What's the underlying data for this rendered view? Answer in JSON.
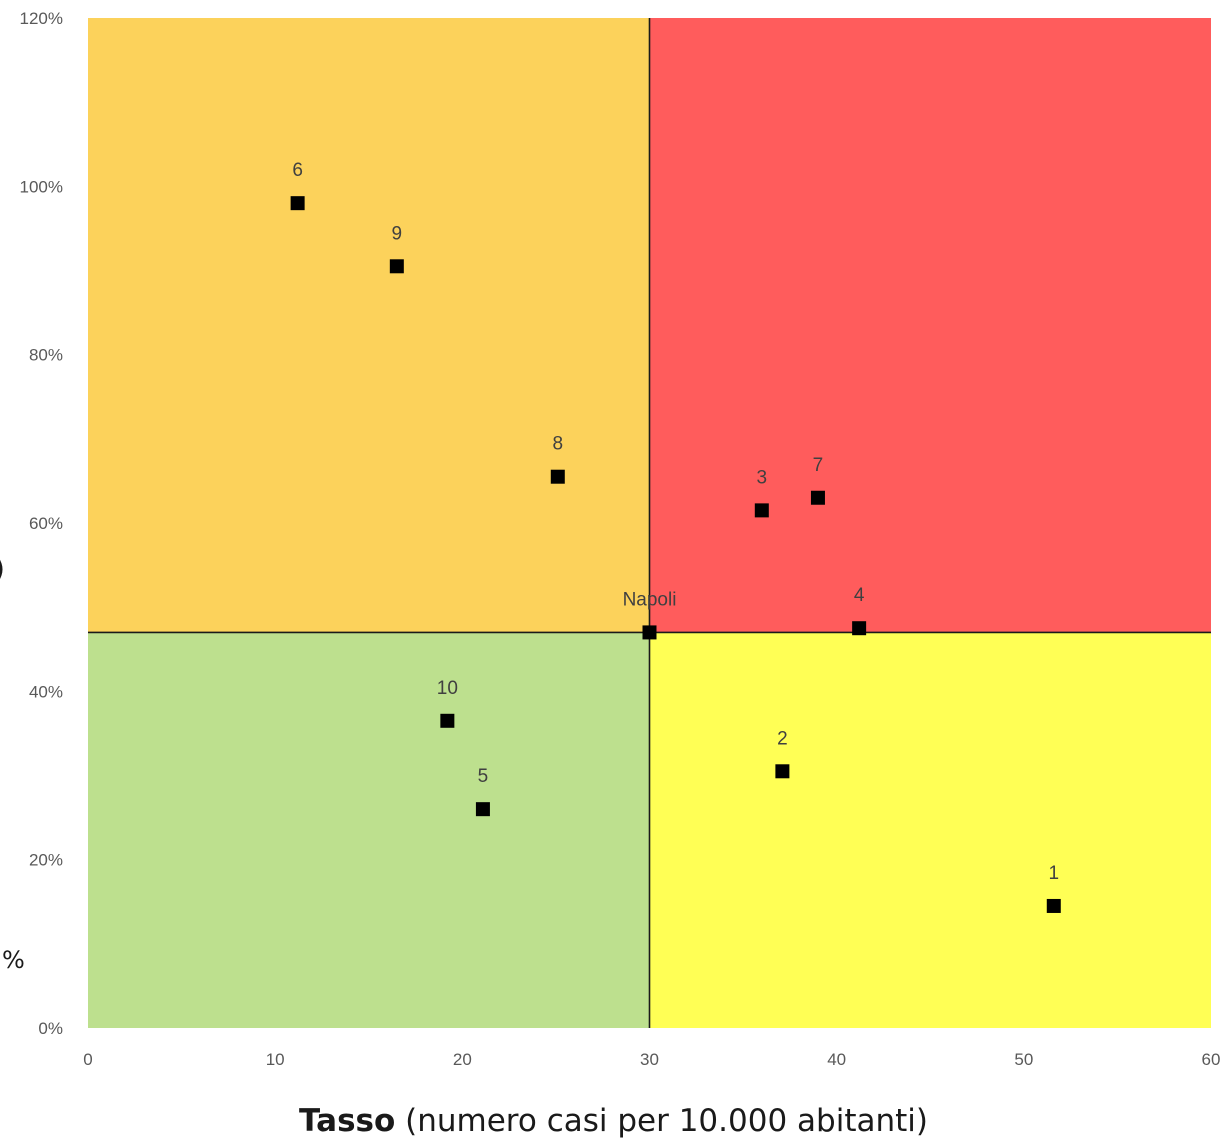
{
  "chart_data": {
    "type": "scatter",
    "x_range": [
      0,
      60
    ],
    "y_range": [
      0,
      1.2
    ],
    "x_ticks": [
      "0",
      "10",
      "20",
      "30",
      "40",
      "50",
      "60"
    ],
    "y_ticks": [
      "0%",
      "20%",
      "40%",
      "60%",
      "80%",
      "100%",
      "120%"
    ],
    "xlabel_bold": "Tasso",
    "xlabel_rest": " (numero casi per 10.000 abitanti)",
    "ylabel_fragments": [
      "%",
      ")"
    ],
    "threshold": {
      "x": 30,
      "y": 0.47
    },
    "quadrant_colors": {
      "top_left": "#fcd25b",
      "top_right": "#ff5c5c",
      "bottom_left": "#bde08e",
      "bottom_right": "#ffff55"
    },
    "marker_color": "#000000",
    "grid": false,
    "points": [
      {
        "label": "1",
        "x": 51.6,
        "y": 0.145
      },
      {
        "label": "2",
        "x": 37.1,
        "y": 0.305
      },
      {
        "label": "3",
        "x": 36.0,
        "y": 0.615
      },
      {
        "label": "4",
        "x": 41.2,
        "y": 0.475
      },
      {
        "label": "5",
        "x": 21.1,
        "y": 0.26
      },
      {
        "label": "6",
        "x": 11.2,
        "y": 0.98
      },
      {
        "label": "7",
        "x": 39.0,
        "y": 0.63
      },
      {
        "label": "8",
        "x": 25.1,
        "y": 0.655
      },
      {
        "label": "9",
        "x": 16.5,
        "y": 0.905
      },
      {
        "label": "10",
        "x": 19.2,
        "y": 0.365
      },
      {
        "label": "Napoli",
        "x": 30.0,
        "y": 0.47
      }
    ]
  }
}
